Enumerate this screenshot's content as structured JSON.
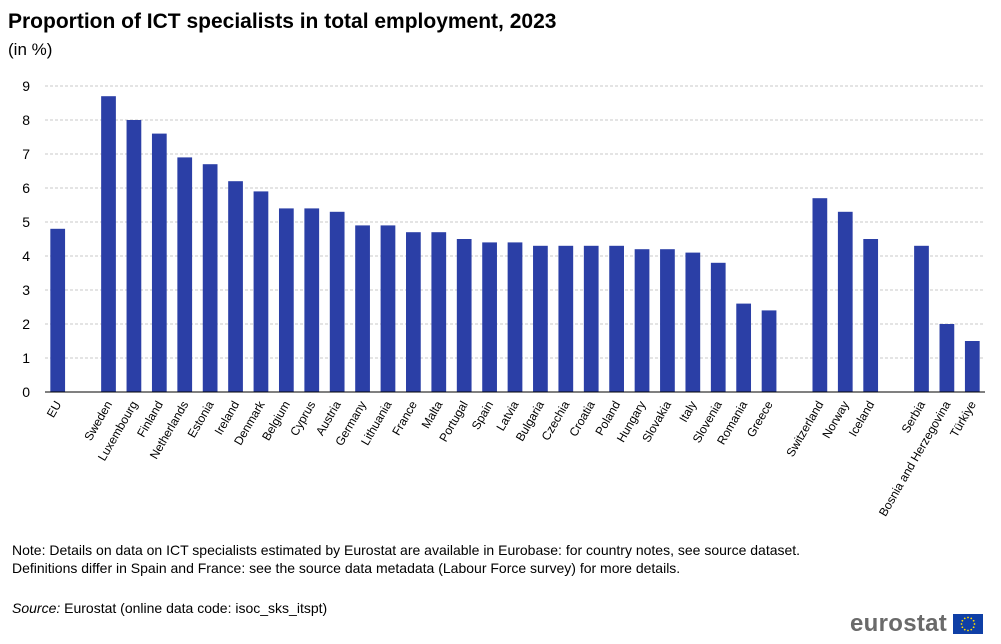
{
  "header": {
    "title": "Proportion of ICT specialists in total employment, 2023",
    "subtitle": "(in %)"
  },
  "footer": {
    "note": "Note: Details on data on ICT specialists estimated by Eurostat are available in Eurobase: for country notes, see source dataset. Definitions differ in Spain and France: see the source data metadata (Labour Force survey) for more details.",
    "source_label": "Source:",
    "source_text": " Eurostat (online data code: isoc_sks_itspt)",
    "logo_text": "eurostat"
  },
  "colors": {
    "bar": "#2b3fa6",
    "grid": "#c8c8c8",
    "axis": "#000000",
    "flag_blue": "#0f3fa6",
    "flag_star": "#ffdd00"
  },
  "chart_data": {
    "type": "bar",
    "title": "Proportion of ICT specialists in total employment, 2023",
    "ylabel": "(in %)",
    "xlabel": "",
    "ylim": [
      0,
      9
    ],
    "yticks": [
      0,
      1,
      2,
      3,
      4,
      5,
      6,
      7,
      8,
      9
    ],
    "grid": true,
    "categories": [
      "EU",
      "",
      "Sweden",
      "Luxembourg",
      "Finland",
      "Netherlands",
      "Estonia",
      "Ireland",
      "Denmark",
      "Belgium",
      "Cyprus",
      "Austria",
      "Germany",
      "Lithuania",
      "France",
      "Malta",
      "Portugal",
      "Spain",
      "Latvia",
      "Bulgaria",
      "Czechia",
      "Croatia",
      "Poland",
      "Hungary",
      "Slovakia",
      "Italy",
      "Slovenia",
      "Romania",
      "Greece",
      "",
      "Switzerland",
      "Norway",
      "Iceland",
      "",
      "Serbia",
      "Bosnia and Herzegovina",
      "Türkiye"
    ],
    "values": [
      4.8,
      null,
      8.7,
      8.0,
      7.6,
      6.9,
      6.7,
      6.2,
      5.9,
      5.4,
      5.4,
      5.3,
      4.9,
      4.9,
      4.7,
      4.7,
      4.5,
      4.4,
      4.4,
      4.3,
      4.3,
      4.3,
      4.3,
      4.2,
      4.2,
      4.1,
      3.8,
      2.6,
      2.4,
      null,
      5.7,
      5.3,
      4.5,
      null,
      4.3,
      2.0,
      1.5
    ]
  }
}
